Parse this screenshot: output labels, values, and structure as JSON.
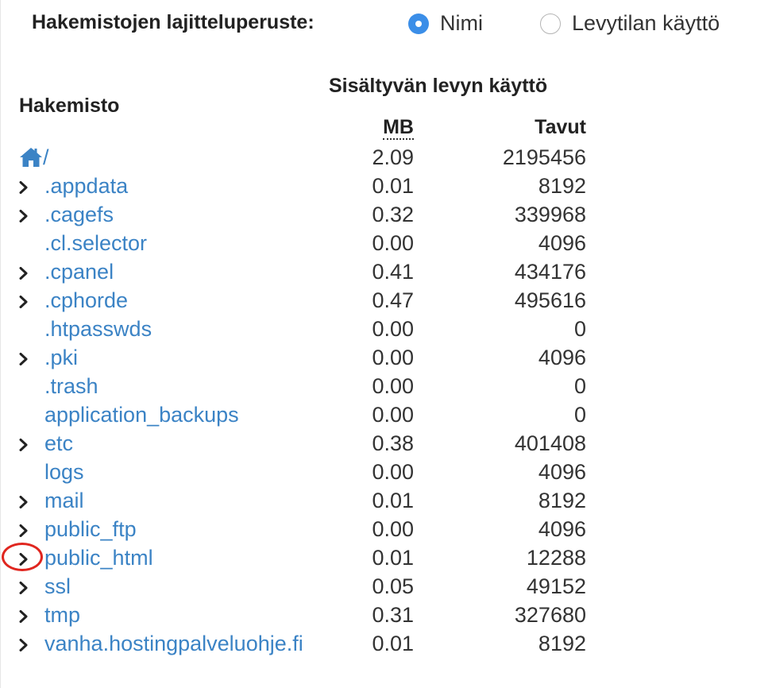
{
  "sort": {
    "label": "Hakemistojen lajitteluperuste:",
    "options": [
      {
        "label": "Nimi",
        "checked": true
      },
      {
        "label": "Levytilan käyttö",
        "checked": false
      }
    ]
  },
  "table": {
    "dir_header": "Hakemisto",
    "group_header": "Sisältyvän levyn käyttö",
    "mb_header": "MB",
    "bytes_header": "Tavut",
    "root": {
      "name": "/",
      "icon": "home-icon",
      "mb": "2.09",
      "bytes": "2195456"
    },
    "rows": [
      {
        "name": ".appdata",
        "expandable": true,
        "mb": "0.01",
        "bytes": "8192"
      },
      {
        "name": ".cagefs",
        "expandable": true,
        "mb": "0.32",
        "bytes": "339968"
      },
      {
        "name": ".cl.selector",
        "expandable": false,
        "mb": "0.00",
        "bytes": "4096"
      },
      {
        "name": ".cpanel",
        "expandable": true,
        "mb": "0.41",
        "bytes": "434176"
      },
      {
        "name": ".cphorde",
        "expandable": true,
        "mb": "0.47",
        "bytes": "495616"
      },
      {
        "name": ".htpasswds",
        "expandable": false,
        "mb": "0.00",
        "bytes": "0"
      },
      {
        "name": ".pki",
        "expandable": true,
        "mb": "0.00",
        "bytes": "4096"
      },
      {
        "name": ".trash",
        "expandable": false,
        "mb": "0.00",
        "bytes": "0"
      },
      {
        "name": "application_backups",
        "expandable": false,
        "mb": "0.00",
        "bytes": "0"
      },
      {
        "name": "etc",
        "expandable": true,
        "mb": "0.38",
        "bytes": "401408"
      },
      {
        "name": "logs",
        "expandable": false,
        "mb": "0.00",
        "bytes": "4096"
      },
      {
        "name": "mail",
        "expandable": true,
        "mb": "0.01",
        "bytes": "8192"
      },
      {
        "name": "public_ftp",
        "expandable": true,
        "mb": "0.00",
        "bytes": "4096"
      },
      {
        "name": "public_html",
        "expandable": true,
        "mb": "0.01",
        "bytes": "12288",
        "highlighted": true
      },
      {
        "name": "ssl",
        "expandable": true,
        "mb": "0.05",
        "bytes": "49152"
      },
      {
        "name": "tmp",
        "expandable": true,
        "mb": "0.31",
        "bytes": "327680"
      },
      {
        "name": "vanha.hostingpalveluohje.fi",
        "expandable": true,
        "mb": "0.01",
        "bytes": "8192"
      }
    ]
  },
  "colors": {
    "link": "#3b83c5",
    "radio_checked": "#3b8ee8",
    "highlight_circle": "#e0261f"
  }
}
